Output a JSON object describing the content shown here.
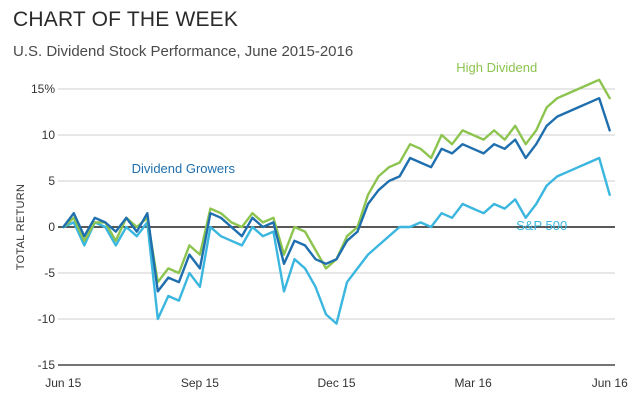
{
  "header": {
    "title": "CHART OF THE WEEK",
    "subtitle": "U.S. Dividend Stock Performance, June 2015-2016"
  },
  "chart_data": {
    "type": "line",
    "title": "CHART OF THE WEEK",
    "subtitle": "U.S. Dividend Stock Performance, June 2015-2016",
    "xlabel": "",
    "ylabel": "TOTAL RETURN",
    "ylim": [
      -15,
      15
    ],
    "xlim": [
      -0.5,
      52.5
    ],
    "y_ticks": [
      {
        "value": 15,
        "label": "15%"
      },
      {
        "value": 10,
        "label": "10"
      },
      {
        "value": 5,
        "label": "5"
      },
      {
        "value": 0,
        "label": "0"
      },
      {
        "value": -5,
        "label": "-5"
      },
      {
        "value": -10,
        "label": "-10"
      },
      {
        "value": -15,
        "label": "-15"
      }
    ],
    "x_ticks": [
      {
        "value": 0,
        "label": "Jun 15"
      },
      {
        "value": 13,
        "label": "Sep 15"
      },
      {
        "value": 26,
        "label": "Dec 15"
      },
      {
        "value": 39,
        "label": "Mar 16"
      },
      {
        "value": 52,
        "label": "Jun 16"
      }
    ],
    "grid": "horizontal",
    "x": [
      0,
      1,
      2,
      3,
      4,
      5,
      6,
      7,
      8,
      9,
      10,
      11,
      12,
      13,
      14,
      15,
      16,
      17,
      18,
      19,
      20,
      21,
      22,
      23,
      24,
      25,
      26,
      27,
      28,
      29,
      30,
      31,
      32,
      33,
      34,
      35,
      36,
      37,
      38,
      39,
      40,
      41,
      42,
      43,
      44,
      45,
      46,
      47,
      48,
      49,
      50,
      51,
      52
    ],
    "series": [
      {
        "name": "High Dividend",
        "color": "#8dc450",
        "label_anchor": 47,
        "values": [
          0,
          1,
          -1.5,
          0.5,
          0.5,
          -1.5,
          1,
          0,
          1,
          -6,
          -4.5,
          -5,
          -2,
          -3,
          2,
          1.5,
          0.5,
          0,
          1.5,
          0.5,
          1,
          -3,
          0,
          -0.5,
          -2.5,
          -4.5,
          -3.5,
          -1,
          0,
          3.5,
          5.5,
          6.5,
          7,
          9,
          8.5,
          7.5,
          10,
          9,
          10.5,
          10,
          9.5,
          10.5,
          9.5,
          11,
          9,
          10.5,
          13,
          14,
          14.5,
          15,
          15.5,
          16,
          14
        ]
      },
      {
        "name": "Dividend Growers",
        "color": "#1f6fae",
        "label_anchor": 8,
        "values": [
          0,
          1.5,
          -1,
          1,
          0.5,
          -0.5,
          1,
          -0.5,
          1.5,
          -7,
          -5.5,
          -6,
          -3,
          -4.5,
          1.5,
          1,
          0,
          -1,
          1,
          0,
          0.5,
          -4,
          -1.5,
          -2,
          -3.5,
          -4,
          -3.5,
          -1.5,
          -0.5,
          2.5,
          4,
          5,
          5.5,
          7.5,
          7,
          6.5,
          8.5,
          8,
          9,
          8.5,
          8,
          9,
          8.5,
          9.5,
          7.5,
          9,
          11,
          12,
          12.5,
          13,
          13.5,
          14,
          10.5
        ]
      },
      {
        "name": "S&P 500",
        "color": "#3ab6df",
        "label_anchor": 41,
        "values": [
          0,
          0.5,
          -2,
          0.5,
          0,
          -2,
          0,
          -1,
          0.5,
          -10,
          -7.5,
          -8,
          -5,
          -6.5,
          0,
          -1,
          -1.5,
          -2,
          0,
          -1,
          -0.5,
          -7,
          -3.5,
          -4.5,
          -6.5,
          -9.5,
          -10.5,
          -6,
          -4.5,
          -3,
          -2,
          -1,
          0,
          0,
          0.5,
          0,
          1.5,
          1,
          2.5,
          2,
          1.5,
          2.5,
          2,
          3,
          1,
          2.5,
          4.5,
          5.5,
          6,
          6.5,
          7,
          7.5,
          3.5
        ]
      }
    ]
  }
}
